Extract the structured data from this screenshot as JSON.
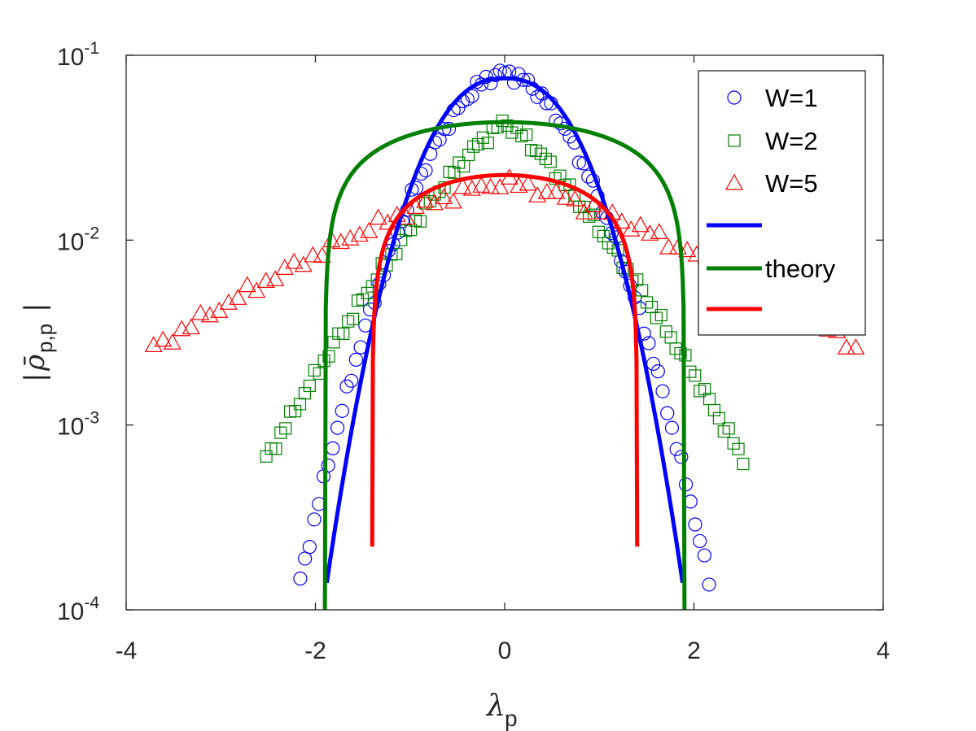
{
  "chart_data": {
    "type": "scatter",
    "title": "",
    "xlabel": {
      "symbol": "λ",
      "subscript": "p"
    },
    "ylabel": {
      "symbol": "ρ̄",
      "subscript": "p,p"
    },
    "xlim": [
      -4,
      4
    ],
    "ylim": [
      0.0001,
      0.1
    ],
    "yscale": "log",
    "grid": false,
    "legend_position": "top-right",
    "xticks": [
      {
        "value": -4,
        "label": "-4"
      },
      {
        "value": -2,
        "label": "-2"
      },
      {
        "value": 0,
        "label": "0"
      },
      {
        "value": 2,
        "label": "2"
      },
      {
        "value": 4,
        "label": "4"
      }
    ],
    "yticks": [
      {
        "value": 0.0001,
        "base": "10",
        "exp": "-4"
      },
      {
        "value": 0.001,
        "base": "10",
        "exp": "-3"
      },
      {
        "value": 0.01,
        "base": "10",
        "exp": "-2"
      },
      {
        "value": 0.1,
        "base": "10",
        "exp": "-1"
      }
    ],
    "series": [
      {
        "name": "W=1",
        "kind": "markers",
        "marker": "circle",
        "color": "#0000ff",
        "halfwidth": 2.16,
        "peak": 0.08,
        "edge": 0.000142,
        "shape": 1.8,
        "count": 89
      },
      {
        "name": "W=2",
        "kind": "markers",
        "marker": "square",
        "color": "#008000",
        "halfwidth": 2.52,
        "peak": 0.043,
        "edge": 0.00065,
        "shape": 1.25,
        "count": 100
      },
      {
        "name": "W=5",
        "kind": "markers",
        "marker": "triangle",
        "color": "#ff0000",
        "halfwidth": 3.71,
        "peak": 0.0205,
        "edge": 0.0026,
        "shape": 1.35,
        "count": 76
      },
      {
        "name": "",
        "kind": "line",
        "color": "#0000ff",
        "xmin": -1.88,
        "xmax": 1.88,
        "peak": 0.075,
        "edge": 0.00014,
        "shape": 2.4
      },
      {
        "name": "theory",
        "kind": "line",
        "color": "#008000",
        "model": "semicircle",
        "R": 1.9,
        "peak": 0.0435,
        "ymin": 0.0001
      },
      {
        "name": "",
        "kind": "line",
        "color": "#ff0000",
        "model": "semicircle",
        "R": 1.4,
        "peak": 0.0225,
        "ymin": 0.00022
      }
    ]
  }
}
